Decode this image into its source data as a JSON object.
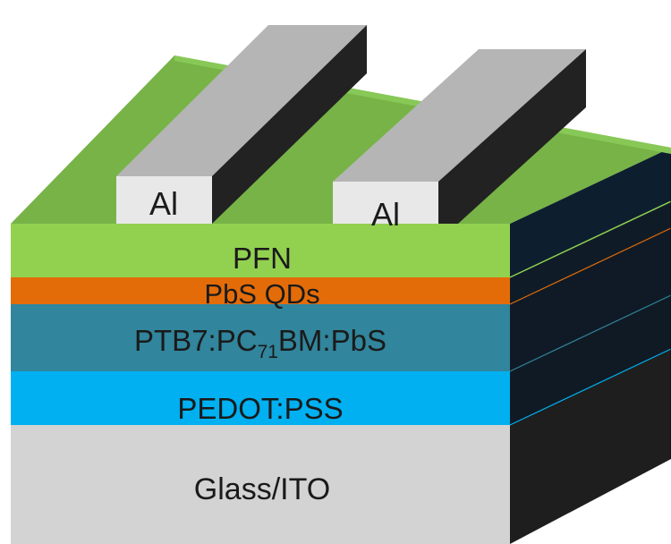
{
  "diagram": {
    "layers": [
      {
        "id": "pfn",
        "label": "PFN",
        "front": "#92d050",
        "side": "#0d1f2e",
        "top": "#77b347"
      },
      {
        "id": "pbs-qds",
        "label": "PbS QDs",
        "front": "#e36c09",
        "side": "#0f1c28"
      },
      {
        "id": "active",
        "label_main": "PTB7:PC",
        "label_sub": "71",
        "label_tail": "BM:PbS",
        "front": "#31859c",
        "side": "#0f1a26"
      },
      {
        "id": "pedot",
        "label": "PEDOT:PSS",
        "front": "#00b0f0",
        "side": "#101a24"
      },
      {
        "id": "glass",
        "label": "Glass/ITO",
        "front": "#d3d3d3",
        "side": "#1e1e1e"
      }
    ],
    "electrodes": [
      {
        "id": "al-left",
        "label": "Al"
      },
      {
        "id": "al-right",
        "label": "Al"
      }
    ],
    "electrode_colors": {
      "front": "#e8e8e8",
      "top": "#b5b5b5",
      "side": "#222222"
    }
  }
}
